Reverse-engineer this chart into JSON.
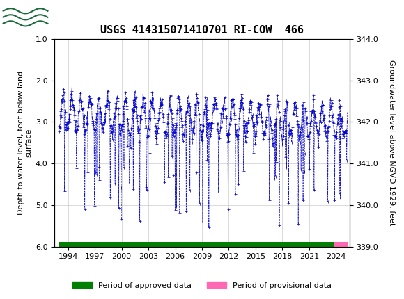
{
  "title": "USGS 414315071410701 RI-COW  466",
  "ylabel_left": "Depth to water level, feet below land\nsurface",
  "ylabel_right": "Groundwater level above NGVD 1929, feet",
  "ylim_left": [
    6.0,
    1.0
  ],
  "ylim_right": [
    339.0,
    344.0
  ],
  "yticks_left": [
    1.0,
    2.0,
    3.0,
    4.0,
    5.0,
    6.0
  ],
  "yticks_right": [
    339.0,
    340.0,
    341.0,
    342.0,
    343.0,
    344.0
  ],
  "xlim": [
    1992.5,
    2025.5
  ],
  "xticks": [
    1994,
    1997,
    2000,
    2003,
    2006,
    2009,
    2012,
    2015,
    2018,
    2021,
    2024
  ],
  "line_color": "#0000CC",
  "marker": "+",
  "linestyle": "--",
  "approved_color": "#008000",
  "provisional_color": "#FF69B4",
  "approved_label": "Period of approved data",
  "provisional_label": "Period of provisional data",
  "header_bg": "#1a6b3c",
  "background_color": "#FFFFFF",
  "grid_color": "#CCCCCC",
  "title_fontsize": 11,
  "axis_label_fontsize": 8,
  "tick_fontsize": 8,
  "approved_start": 1993.0,
  "approved_end": 2023.7,
  "provisional_start": 2023.7,
  "provisional_end": 2025.4
}
